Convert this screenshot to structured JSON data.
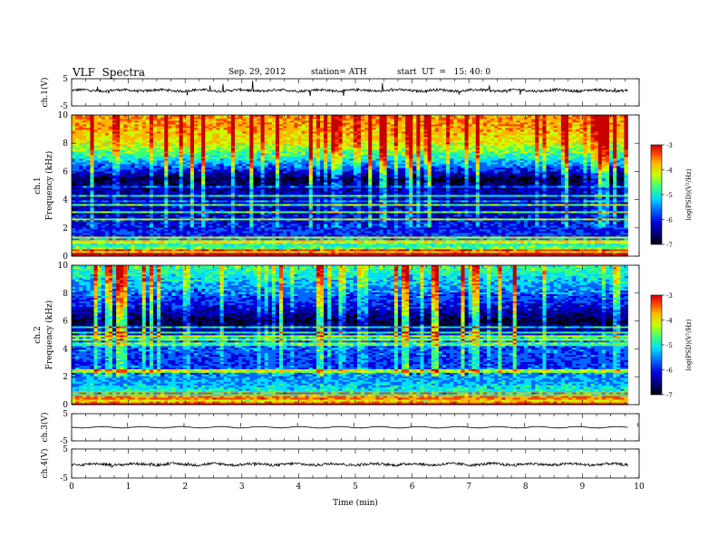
{
  "header": {
    "title": "VLF  Spectra",
    "date": "Sep. 29, 2012",
    "station": "station= ATH",
    "start": "start  UT  =   15: 40: 0"
  },
  "chart_data": [
    {
      "type": "line",
      "panel": "ch1-waveform",
      "ylabel": "ch.1(V)",
      "ylim": [
        -5,
        5
      ],
      "yticks": [
        "5",
        "-5"
      ],
      "xlim": [
        0,
        10
      ],
      "data_extent_min": [
        0,
        9.8
      ],
      "series": [
        {
          "values_description_level": 0.7
        }
      ],
      "color": "#000000"
    },
    {
      "type": "heatmap",
      "panel": "ch1-spectrogram",
      "ylabel": "Frequency  (kHz)",
      "channel_label": "ch.1",
      "ylim": [
        0,
        10
      ],
      "yticks": [
        "0",
        "2",
        "4",
        "6",
        "8",
        "10"
      ],
      "xlim": [
        0,
        10
      ],
      "colorbar": {
        "label": "log(PSD)(V²/Hz)",
        "range": [
          -7,
          -3
        ],
        "ticks": [
          "-3",
          "-4",
          "-5",
          "-6",
          "-7"
        ]
      },
      "profile_kHz_logpsd": [
        [
          0,
          -3.3
        ],
        [
          0.5,
          -4.6
        ],
        [
          1.5,
          -5.8
        ],
        [
          3,
          -6.1
        ],
        [
          4.5,
          -6.2
        ],
        [
          5.5,
          -6.6
        ],
        [
          6,
          -6.0
        ],
        [
          7,
          -5.0
        ],
        [
          8,
          -4.3
        ],
        [
          9,
          -4.0
        ],
        [
          10,
          -3.9
        ]
      ]
    },
    {
      "type": "heatmap",
      "panel": "ch2-spectrogram",
      "ylabel": "Frequency  (kHz)",
      "channel_label": "ch.2",
      "ylim": [
        0,
        10
      ],
      "yticks": [
        "0",
        "2",
        "4",
        "6",
        "8",
        "10"
      ],
      "xlim": [
        0,
        10
      ],
      "colorbar": {
        "label": "log(PSD)(V²/Hz)",
        "range": [
          -7,
          -3
        ],
        "ticks": [
          "-3",
          "-4",
          "-5",
          "-6",
          "-7"
        ]
      },
      "profile_kHz_logpsd": [
        [
          0,
          -3.3
        ],
        [
          0.5,
          -4.8
        ],
        [
          1.5,
          -5.3
        ],
        [
          3,
          -5.8
        ],
        [
          4.5,
          -5.6
        ],
        [
          5.5,
          -6.3
        ],
        [
          6,
          -6.6
        ],
        [
          7,
          -6.0
        ],
        [
          8,
          -5.6
        ],
        [
          9,
          -5.2
        ],
        [
          10,
          -4.8
        ]
      ]
    },
    {
      "type": "line",
      "panel": "ch3-waveform",
      "ylabel": "ch.3(V)",
      "ylim": [
        -5,
        5
      ],
      "yticks": [
        "5",
        "-5"
      ],
      "xlim": [
        0,
        10
      ],
      "series": [
        {
          "values_description_level": 0.0
        }
      ],
      "color": "#000000"
    },
    {
      "type": "line",
      "panel": "ch4-waveform",
      "ylabel": "ch.4(V)",
      "ylim": [
        -5,
        5
      ],
      "yticks": [
        "5",
        "-5"
      ],
      "xlim": [
        0,
        10
      ],
      "series": [
        {
          "values_description_level": -0.3
        }
      ],
      "color": "#000000",
      "xlabel": "Time  (min)",
      "xticks": [
        "0",
        "1",
        "2",
        "3",
        "4",
        "5",
        "6",
        "7",
        "8",
        "9",
        "10"
      ]
    }
  ],
  "colors": {
    "colormap": [
      "#000000",
      "#00006e",
      "#0000dc",
      "#0064ff",
      "#00dcff",
      "#3cff78",
      "#c8ff00",
      "#ffb400",
      "#ff3c00",
      "#c80000"
    ]
  }
}
